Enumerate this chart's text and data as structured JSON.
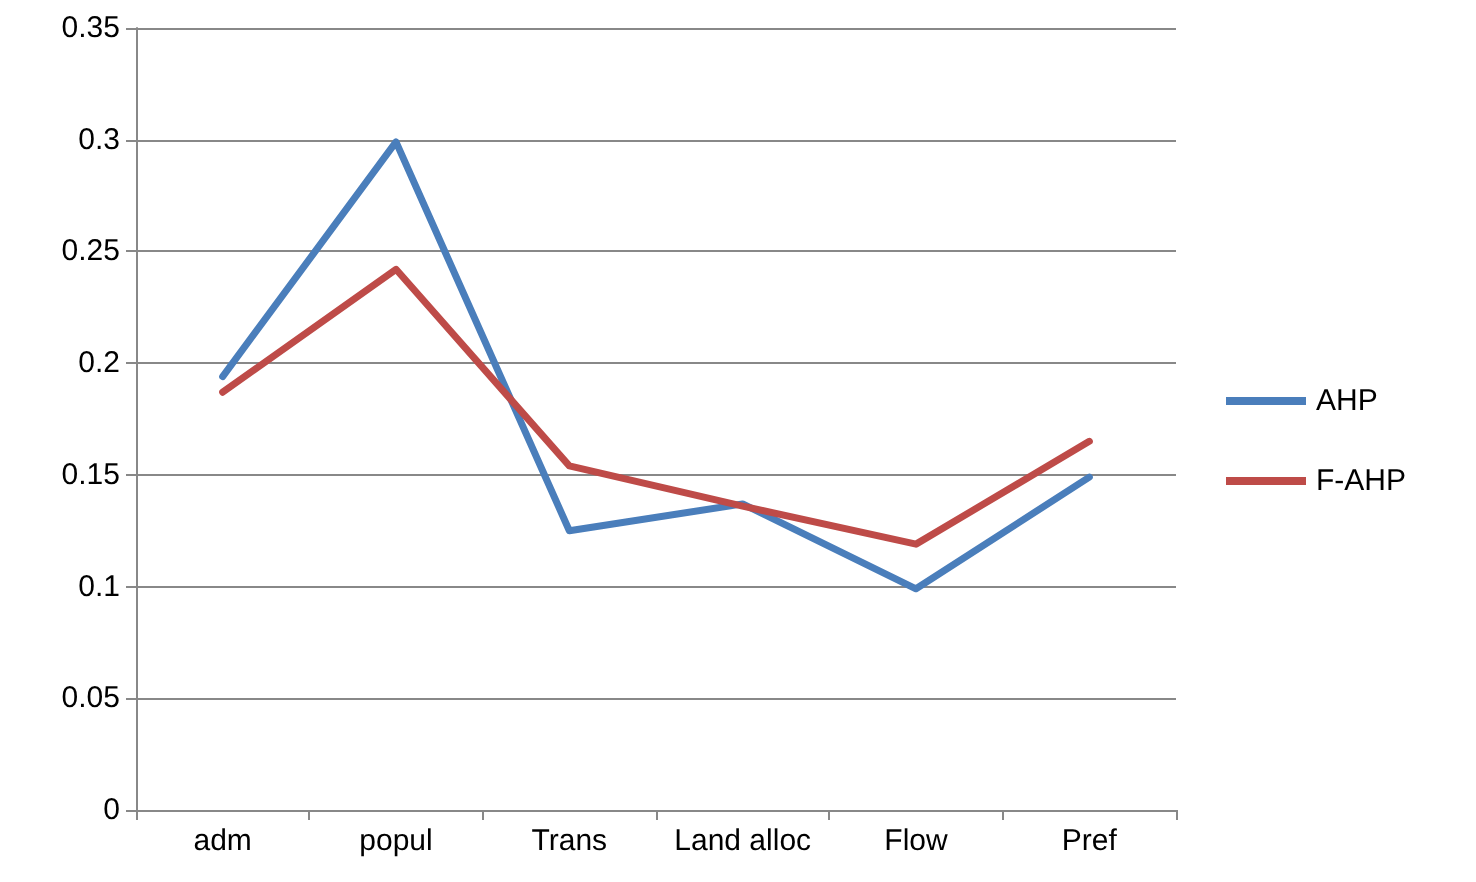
{
  "chart_data": {
    "type": "line",
    "categories": [
      "adm",
      "popul",
      "Trans",
      "Land alloc",
      "Flow",
      "Pref"
    ],
    "series": [
      {
        "name": "AHP",
        "color": "#4a7ebb",
        "values": [
          0.194,
          0.299,
          0.125,
          0.137,
          0.099,
          0.149
        ]
      },
      {
        "name": "F-AHP",
        "color": "#be4b48",
        "values": [
          0.187,
          0.242,
          0.154,
          0.136,
          0.119,
          0.165
        ]
      }
    ],
    "ylim": [
      0,
      0.35
    ],
    "yticks": [
      0,
      0.05,
      0.1,
      0.15,
      0.2,
      0.25,
      0.3,
      0.35
    ],
    "grid": "y",
    "legend": "right",
    "marker": "none",
    "line_style": "solid"
  }
}
